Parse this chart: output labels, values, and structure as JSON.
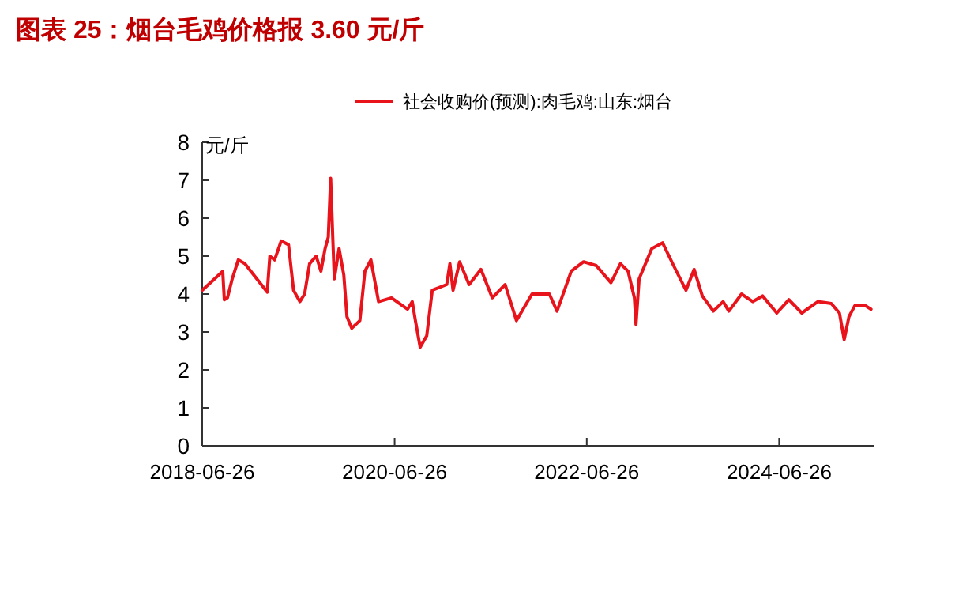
{
  "chart_data": {
    "type": "line",
    "title": "图表 25：烟台毛鸡价格报 3.60 元/斤",
    "ylabel": "元/斤",
    "legend": "top",
    "x": [
      "2018-06-26",
      "2018-09-12",
      "2018-09-18",
      "2018-09-30",
      "2018-10-18",
      "2018-11-10",
      "2018-12-05",
      "2019-02-28",
      "2019-03-10",
      "2019-03-28",
      "2019-04-22",
      "2019-05-20",
      "2019-06-08",
      "2019-07-02",
      "2019-07-20",
      "2019-08-08",
      "2019-09-02",
      "2019-09-20",
      "2019-10-06",
      "2019-10-18",
      "2019-10-27",
      "2019-11-04",
      "2019-11-10",
      "2019-11-28",
      "2019-12-16",
      "2019-12-28",
      "2020-01-15",
      "2020-02-15",
      "2020-03-05",
      "2020-03-28",
      "2020-04-26",
      "2020-06-14",
      "2020-08-14",
      "2020-09-01",
      "2020-09-13",
      "2020-10-01",
      "2020-10-26",
      "2020-11-16",
      "2021-01-10",
      "2021-01-22",
      "2021-02-03",
      "2021-02-28",
      "2021-04-05",
      "2021-05-20",
      "2021-07-02",
      "2021-08-20",
      "2021-10-02",
      "2021-11-30",
      "2022-02-04",
      "2022-03-05",
      "2022-04-28",
      "2022-06-14",
      "2022-08-01",
      "2022-09-26",
      "2022-11-01",
      "2022-11-30",
      "2022-12-24",
      "2022-12-30",
      "2023-01-11",
      "2023-02-28",
      "2023-04-10",
      "2023-05-22",
      "2023-07-08",
      "2023-08-08",
      "2023-09-08",
      "2023-10-20",
      "2023-11-26",
      "2023-12-18",
      "2024-02-04",
      "2024-03-18",
      "2024-04-24",
      "2024-06-17",
      "2024-08-02",
      "2024-09-20",
      "2024-11-20",
      "2025-01-10",
      "2025-02-10",
      "2025-02-28",
      "2025-03-18",
      "2025-04-10",
      "2025-05-18",
      "2025-06-10"
    ],
    "series": [
      {
        "name": "社会收购价(预测):肉毛鸡:山东:烟台",
        "color": "#e8131b",
        "values": [
          4.1,
          4.6,
          3.85,
          3.9,
          4.4,
          4.9,
          4.8,
          4.05,
          5.0,
          4.9,
          5.4,
          5.3,
          4.1,
          3.8,
          4.0,
          4.8,
          5.0,
          4.6,
          5.2,
          5.5,
          7.05,
          5.5,
          4.4,
          5.2,
          4.5,
          3.4,
          3.1,
          3.3,
          4.6,
          4.9,
          3.8,
          3.9,
          3.6,
          3.8,
          3.3,
          2.6,
          2.9,
          4.1,
          4.25,
          4.8,
          4.1,
          4.85,
          4.25,
          4.65,
          3.9,
          4.25,
          3.3,
          4.0,
          4.0,
          3.55,
          4.6,
          4.85,
          4.75,
          4.3,
          4.8,
          4.6,
          3.9,
          3.2,
          4.4,
          5.2,
          5.35,
          4.75,
          4.1,
          4.65,
          3.95,
          3.55,
          3.8,
          3.55,
          4.0,
          3.8,
          3.95,
          3.5,
          3.85,
          3.5,
          3.8,
          3.75,
          3.5,
          2.8,
          3.4,
          3.7,
          3.7,
          3.6
        ]
      }
    ],
    "xlim": [
      "2018-06-26",
      "2025-06-20"
    ],
    "xticks": [
      "2018-06-26",
      "2020-06-26",
      "2022-06-26",
      "2024-06-26"
    ],
    "ylim": [
      0,
      8
    ],
    "yticks": [
      0,
      1,
      2,
      3,
      4,
      5,
      6,
      7,
      8
    ]
  }
}
